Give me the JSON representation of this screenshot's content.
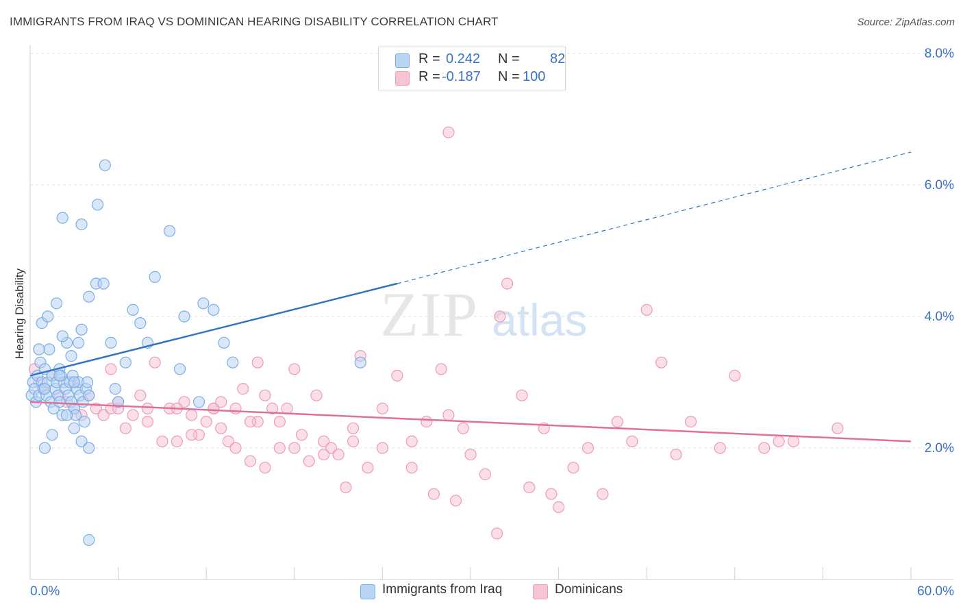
{
  "header": {
    "title": "IMMIGRANTS FROM IRAQ VS DOMINICAN HEARING DISABILITY CORRELATION CHART",
    "source": "Source: ZipAtlas.com"
  },
  "watermark": {
    "zip": "ZIP",
    "atlas": "atlas"
  },
  "colors": {
    "blue": "#7aaee6",
    "blue_fill": "#b9d4f2",
    "blue_line": "#2f74c8",
    "pink": "#ee9ab8",
    "pink_fill": "#f6c5d5",
    "pink_line": "#e0709a",
    "axis_label": "#3a72c4",
    "grid": "#e3e3e3"
  },
  "legend": {
    "rows": [
      {
        "series": "Immigrants from Iraq",
        "r_label": "R =",
        "r_value": "0.242",
        "n_label": "N =",
        "n_value": "82"
      },
      {
        "series": "Dominicans",
        "r_label": "R =",
        "r_value": "-0.187",
        "n_label": "N =",
        "n_value": "100"
      }
    ]
  },
  "chart_data": {
    "type": "scatter",
    "title": "IMMIGRANTS FROM IRAQ VS DOMINICAN HEARING DISABILITY CORRELATION CHART",
    "xlabel": "",
    "ylabel": "Hearing Disability",
    "xlim": [
      0,
      60
    ],
    "ylim": [
      0,
      8
    ],
    "x_tick_labels": [
      "0.0%",
      "60.0%"
    ],
    "y_ticks": [
      2,
      4,
      6,
      8
    ],
    "y_tick_labels": [
      "2.0%",
      "4.0%",
      "6.0%",
      "8.0%"
    ],
    "grid": true,
    "legend_position": "top-center",
    "series": [
      {
        "name": "Immigrants from Iraq",
        "color": "#7aaee6",
        "points": [
          [
            0.1,
            2.8
          ],
          [
            0.2,
            3.0
          ],
          [
            0.3,
            2.9
          ],
          [
            0.4,
            2.7
          ],
          [
            0.5,
            3.1
          ],
          [
            0.6,
            2.8
          ],
          [
            0.7,
            3.3
          ],
          [
            0.8,
            3.0
          ],
          [
            0.9,
            2.9
          ],
          [
            1.0,
            3.2
          ],
          [
            1.1,
            2.8
          ],
          [
            1.2,
            3.0
          ],
          [
            1.3,
            3.5
          ],
          [
            1.4,
            2.7
          ],
          [
            1.5,
            3.1
          ],
          [
            1.6,
            2.6
          ],
          [
            1.7,
            2.9
          ],
          [
            1.8,
            3.0
          ],
          [
            1.9,
            2.8
          ],
          [
            2.0,
            3.2
          ],
          [
            2.1,
            3.1
          ],
          [
            2.2,
            2.5
          ],
          [
            2.3,
            3.0
          ],
          [
            2.4,
            2.9
          ],
          [
            2.5,
            3.6
          ],
          [
            2.6,
            2.8
          ],
          [
            2.7,
            3.0
          ],
          [
            2.8,
            2.7
          ],
          [
            2.9,
            3.1
          ],
          [
            3.0,
            2.6
          ],
          [
            3.1,
            2.5
          ],
          [
            3.2,
            2.9
          ],
          [
            3.3,
            3.0
          ],
          [
            3.4,
            2.8
          ],
          [
            3.5,
            3.8
          ],
          [
            3.6,
            2.7
          ],
          [
            3.7,
            2.4
          ],
          [
            3.8,
            2.9
          ],
          [
            3.9,
            3.0
          ],
          [
            4.0,
            2.8
          ],
          [
            1.0,
            2.0
          ],
          [
            1.5,
            2.2
          ],
          [
            2.0,
            2.7
          ],
          [
            2.5,
            2.5
          ],
          [
            3.0,
            2.3
          ],
          [
            3.5,
            2.1
          ],
          [
            4.0,
            2.0
          ],
          [
            0.6,
            3.5
          ],
          [
            0.8,
            3.9
          ],
          [
            1.2,
            4.0
          ],
          [
            1.8,
            4.2
          ],
          [
            2.2,
            3.7
          ],
          [
            2.8,
            3.4
          ],
          [
            3.3,
            3.6
          ],
          [
            4.0,
            4.3
          ],
          [
            4.5,
            4.5
          ],
          [
            5.0,
            4.5
          ],
          [
            5.5,
            3.6
          ],
          [
            5.8,
            2.9
          ],
          [
            6.0,
            2.7
          ],
          [
            6.5,
            3.3
          ],
          [
            7.0,
            4.1
          ],
          [
            7.5,
            3.9
          ],
          [
            8.0,
            3.6
          ],
          [
            8.5,
            4.6
          ],
          [
            9.5,
            5.3
          ],
          [
            2.2,
            5.5
          ],
          [
            3.5,
            5.4
          ],
          [
            4.6,
            5.7
          ],
          [
            5.1,
            6.3
          ],
          [
            10.5,
            4.0
          ],
          [
            11.5,
            2.7
          ],
          [
            11.8,
            4.2
          ],
          [
            12.5,
            4.1
          ],
          [
            13.2,
            3.6
          ],
          [
            13.8,
            3.3
          ],
          [
            4.0,
            0.6
          ],
          [
            1.0,
            2.9
          ],
          [
            2.0,
            3.1
          ],
          [
            3.0,
            3.0
          ],
          [
            10.2,
            3.2
          ],
          [
            22.5,
            3.3
          ]
        ]
      },
      {
        "name": "Dominicans",
        "color": "#ee9ab8",
        "points": [
          [
            0.3,
            3.2
          ],
          [
            0.6,
            3.0
          ],
          [
            1.0,
            2.9
          ],
          [
            1.5,
            3.1
          ],
          [
            2.0,
            2.8
          ],
          [
            2.5,
            2.7
          ],
          [
            3.0,
            3.0
          ],
          [
            3.5,
            2.5
          ],
          [
            4.0,
            2.8
          ],
          [
            4.5,
            2.6
          ],
          [
            5.0,
            2.5
          ],
          [
            5.5,
            2.6
          ],
          [
            6.0,
            2.7
          ],
          [
            6.5,
            2.3
          ],
          [
            7.0,
            2.5
          ],
          [
            7.5,
            2.8
          ],
          [
            8.0,
            2.4
          ],
          [
            8.5,
            3.3
          ],
          [
            9.0,
            2.1
          ],
          [
            9.5,
            2.6
          ],
          [
            10.0,
            2.1
          ],
          [
            10.5,
            2.7
          ],
          [
            11.0,
            2.5
          ],
          [
            11.5,
            2.2
          ],
          [
            12.0,
            2.4
          ],
          [
            12.5,
            2.6
          ],
          [
            13.0,
            2.3
          ],
          [
            13.5,
            2.1
          ],
          [
            14.0,
            2.6
          ],
          [
            14.5,
            2.9
          ],
          [
            15.0,
            1.8
          ],
          [
            15.5,
            2.4
          ],
          [
            16.0,
            1.7
          ],
          [
            16.5,
            2.6
          ],
          [
            17.0,
            2.4
          ],
          [
            17.5,
            2.6
          ],
          [
            18.0,
            2.0
          ],
          [
            18.5,
            2.2
          ],
          [
            19.0,
            1.8
          ],
          [
            19.5,
            2.8
          ],
          [
            20.0,
            2.1
          ],
          [
            20.5,
            2.0
          ],
          [
            21.0,
            1.9
          ],
          [
            21.5,
            1.4
          ],
          [
            22.0,
            2.1
          ],
          [
            22.5,
            3.4
          ],
          [
            23.0,
            1.7
          ],
          [
            24.0,
            2.0
          ],
          [
            25.0,
            3.1
          ],
          [
            26.0,
            2.1
          ],
          [
            27.0,
            2.4
          ],
          [
            28.0,
            3.2
          ],
          [
            28.5,
            2.5
          ],
          [
            29.0,
            1.2
          ],
          [
            30.0,
            1.9
          ],
          [
            31.0,
            1.6
          ],
          [
            31.8,
            0.7
          ],
          [
            32.0,
            4.0
          ],
          [
            32.5,
            4.5
          ],
          [
            33.5,
            2.8
          ],
          [
            34.0,
            1.4
          ],
          [
            35.0,
            2.3
          ],
          [
            35.5,
            1.3
          ],
          [
            36.0,
            1.1
          ],
          [
            37.0,
            1.7
          ],
          [
            38.0,
            2.0
          ],
          [
            39.0,
            1.3
          ],
          [
            40.0,
            2.4
          ],
          [
            41.0,
            2.1
          ],
          [
            42.0,
            4.1
          ],
          [
            43.0,
            3.3
          ],
          [
            44.0,
            1.9
          ],
          [
            45.0,
            2.4
          ],
          [
            47.0,
            2.0
          ],
          [
            48.0,
            3.1
          ],
          [
            50.0,
            2.0
          ],
          [
            51.0,
            2.1
          ],
          [
            52.0,
            2.1
          ],
          [
            55.0,
            2.3
          ],
          [
            5.5,
            3.2
          ],
          [
            3.0,
            2.6
          ],
          [
            6.0,
            2.6
          ],
          [
            8.0,
            2.6
          ],
          [
            10.0,
            2.6
          ],
          [
            11.0,
            2.2
          ],
          [
            12.5,
            2.6
          ],
          [
            15.0,
            2.4
          ],
          [
            16.0,
            2.8
          ],
          [
            18.0,
            3.2
          ],
          [
            22.0,
            2.3
          ],
          [
            17.0,
            2.0
          ],
          [
            20.0,
            1.9
          ],
          [
            24.0,
            2.6
          ],
          [
            26.0,
            1.7
          ],
          [
            27.5,
            1.3
          ],
          [
            29.5,
            2.3
          ],
          [
            15.5,
            3.3
          ],
          [
            14.0,
            2.0
          ],
          [
            13.0,
            2.7
          ],
          [
            28.5,
            6.8
          ]
        ]
      }
    ],
    "trend_lines": [
      {
        "series": "Immigrants from Iraq",
        "x_start": 0,
        "y_start": 3.1,
        "x_solid_end": 25,
        "y_solid_end": 4.5,
        "x_dashed_end": 60,
        "y_dashed_end": 6.5
      },
      {
        "series": "Dominicans",
        "x_start": 0,
        "y_start": 2.7,
        "x_end": 60,
        "y_end": 2.1
      }
    ]
  },
  "bottom_legend": {
    "items": [
      {
        "label": "Immigrants from Iraq"
      },
      {
        "label": "Dominicans"
      }
    ]
  }
}
